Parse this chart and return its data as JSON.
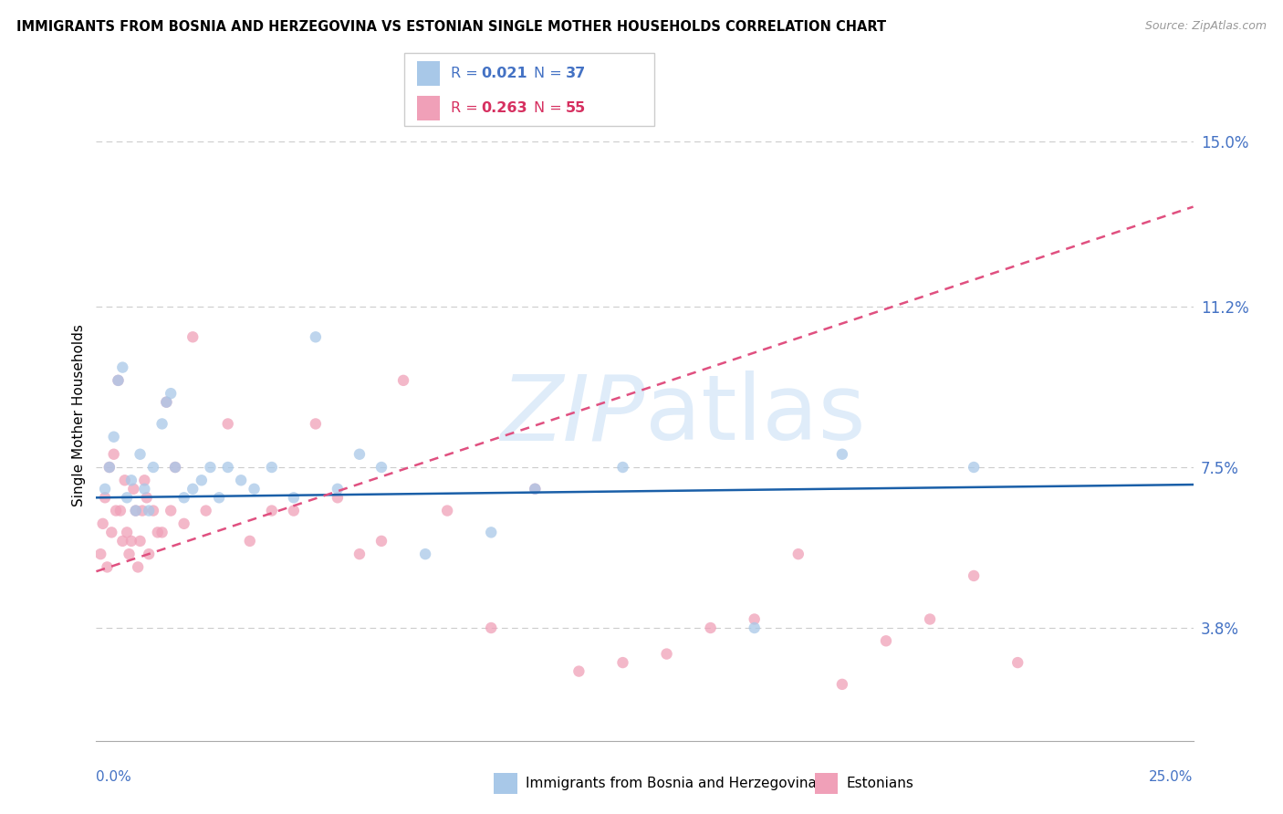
{
  "title": "IMMIGRANTS FROM BOSNIA AND HERZEGOVINA VS ESTONIAN SINGLE MOTHER HOUSEHOLDS CORRELATION CHART",
  "source": "Source: ZipAtlas.com",
  "ylabel": "Single Mother Households",
  "xmin": 0.0,
  "xmax": 25.0,
  "ymin": 1.2,
  "ymax": 16.2,
  "ytick_vals": [
    3.8,
    7.5,
    11.2,
    15.0
  ],
  "ytick_labels": [
    "3.8%",
    "7.5%",
    "11.2%",
    "15.0%"
  ],
  "blue_R": "0.021",
  "blue_N": "37",
  "pink_R": "0.263",
  "pink_N": "55",
  "blue_color": "#a8c8e8",
  "pink_color": "#f0a0b8",
  "blue_line_color": "#1a5fa8",
  "pink_line_color": "#e05080",
  "pink_line_dash": [
    4,
    3
  ],
  "text_blue": "#4472c4",
  "text_pink": "#d63060",
  "legend_label_blue": "Immigrants from Bosnia and Herzegovina",
  "legend_label_pink": "Estonians",
  "blue_trend_x0": 0.0,
  "blue_trend_y0": 6.8,
  "blue_trend_x1": 25.0,
  "blue_trend_y1": 7.1,
  "pink_trend_x0": 0.0,
  "pink_trend_y0": 5.1,
  "pink_trend_x1": 25.0,
  "pink_trend_y1": 13.5,
  "blue_x": [
    0.2,
    0.3,
    0.4,
    0.5,
    0.6,
    0.7,
    0.8,
    0.9,
    1.0,
    1.1,
    1.2,
    1.3,
    1.5,
    1.6,
    1.7,
    1.8,
    2.0,
    2.2,
    2.4,
    2.6,
    2.8,
    3.0,
    3.3,
    3.6,
    4.0,
    4.5,
    5.0,
    5.5,
    6.0,
    6.5,
    7.5,
    9.0,
    10.0,
    12.0,
    15.0,
    17.0,
    20.0
  ],
  "blue_y": [
    7.0,
    7.5,
    8.2,
    9.5,
    9.8,
    6.8,
    7.2,
    6.5,
    7.8,
    7.0,
    6.5,
    7.5,
    8.5,
    9.0,
    9.2,
    7.5,
    6.8,
    7.0,
    7.2,
    7.5,
    6.8,
    7.5,
    7.2,
    7.0,
    7.5,
    6.8,
    10.5,
    7.0,
    7.8,
    7.5,
    5.5,
    6.0,
    7.0,
    7.5,
    3.8,
    7.8,
    7.5
  ],
  "pink_x": [
    0.1,
    0.15,
    0.2,
    0.25,
    0.3,
    0.35,
    0.4,
    0.45,
    0.5,
    0.55,
    0.6,
    0.65,
    0.7,
    0.75,
    0.8,
    0.85,
    0.9,
    0.95,
    1.0,
    1.05,
    1.1,
    1.15,
    1.2,
    1.3,
    1.4,
    1.5,
    1.6,
    1.7,
    1.8,
    2.0,
    2.2,
    2.5,
    3.0,
    3.5,
    4.0,
    4.5,
    5.0,
    5.5,
    6.0,
    6.5,
    7.0,
    8.0,
    9.0,
    10.0,
    11.0,
    12.0,
    13.0,
    14.0,
    15.0,
    16.0,
    17.0,
    18.0,
    19.0,
    20.0,
    21.0
  ],
  "pink_y": [
    5.5,
    6.2,
    6.8,
    5.2,
    7.5,
    6.0,
    7.8,
    6.5,
    9.5,
    6.5,
    5.8,
    7.2,
    6.0,
    5.5,
    5.8,
    7.0,
    6.5,
    5.2,
    5.8,
    6.5,
    7.2,
    6.8,
    5.5,
    6.5,
    6.0,
    6.0,
    9.0,
    6.5,
    7.5,
    6.2,
    10.5,
    6.5,
    8.5,
    5.8,
    6.5,
    6.5,
    8.5,
    6.8,
    5.5,
    5.8,
    9.5,
    6.5,
    3.8,
    7.0,
    2.8,
    3.0,
    3.2,
    3.8,
    4.0,
    5.5,
    2.5,
    3.5,
    4.0,
    5.0,
    3.0
  ]
}
